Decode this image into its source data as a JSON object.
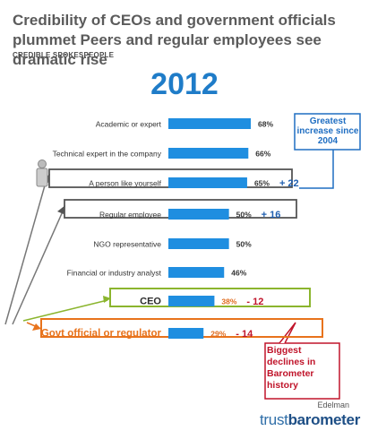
{
  "header": {
    "title": "Credibility of CEOs and government officials plummet Peers and regular employees see dramatic rise",
    "subtitle": "CREDIBLE SPOKESPEOPLE",
    "year": "2012"
  },
  "chart_data": {
    "type": "bar",
    "orientation": "horizontal",
    "title": "2012",
    "categories": [
      "Academic or expert",
      "Technical expert in the company",
      "A person like yourself",
      "Regular employee",
      "NGO representative",
      "Financial or industry analyst",
      "CEO",
      "Govt official or regulator"
    ],
    "values": [
      68,
      66,
      65,
      50,
      50,
      46,
      38,
      29
    ],
    "value_labels": [
      "68%",
      "66%",
      "65%",
      "50%",
      "50%",
      "46%",
      "38%",
      "29%"
    ],
    "changes": [
      "",
      "",
      "+ 22",
      "+ 16",
      "",
      "",
      "- 12",
      "- 14"
    ],
    "xlim": [
      0,
      68
    ],
    "colors": {
      "bar": "#1f8ee0",
      "increase": "#1f5fb0",
      "decrease": "#c0142a",
      "negative_value": "#e06a1c",
      "orange_box": "#e8731c",
      "green_box": "#8bb52e"
    }
  },
  "callouts": {
    "increase": "Greatest increase since 2004",
    "decline": "Biggest declines in Barometer history"
  },
  "logo": {
    "brand": "Edelman",
    "product_light": "trust",
    "product_bold": "barometer"
  }
}
